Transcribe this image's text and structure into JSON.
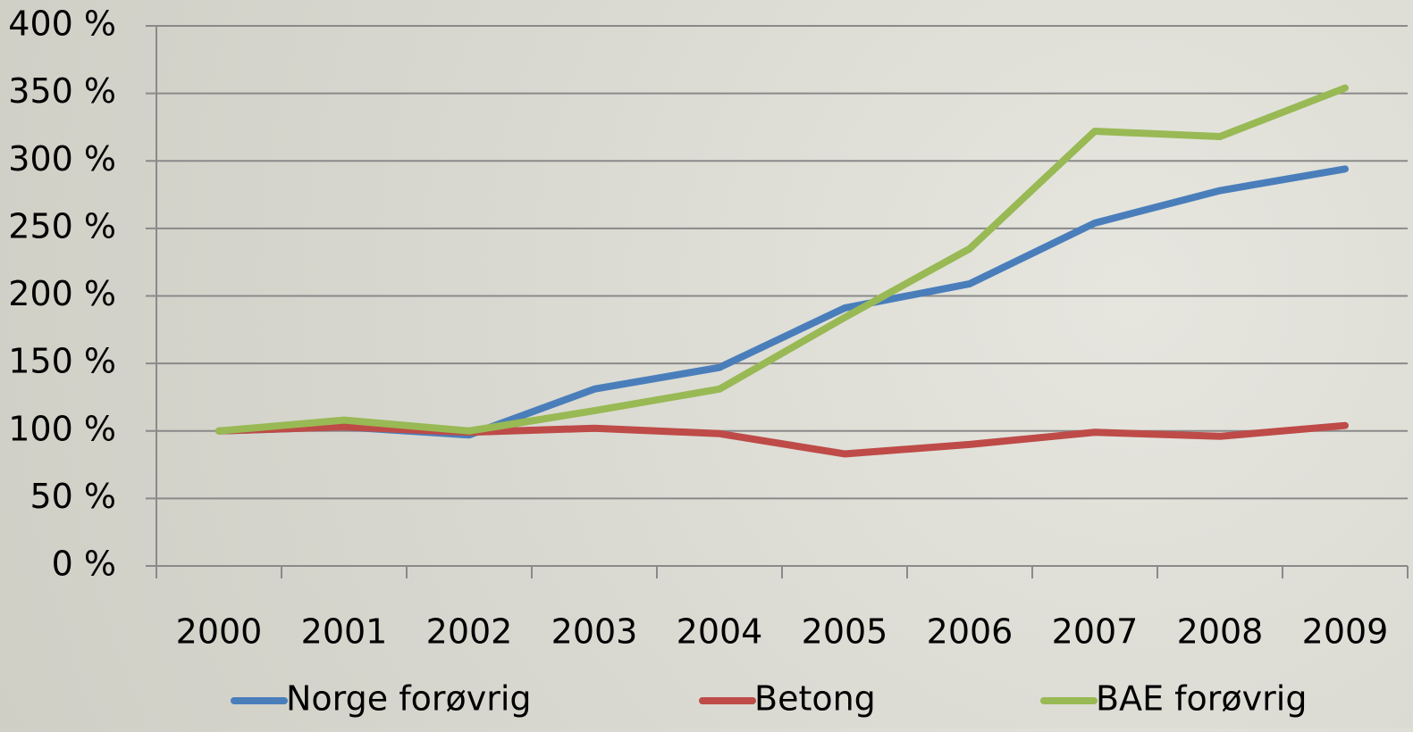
{
  "chart_data": {
    "type": "line",
    "categories": [
      "2000",
      "2001",
      "2002",
      "2003",
      "2004",
      "2005",
      "2006",
      "2007",
      "2008",
      "2009"
    ],
    "series": [
      {
        "name": "Norge forøvrig",
        "color": "#4a7ebb",
        "values": [
          100,
          103,
          97,
          131,
          147,
          191,
          209,
          254,
          278,
          294
        ]
      },
      {
        "name": "Betong",
        "color": "#be4b48",
        "values": [
          100,
          103,
          99,
          102,
          98,
          83,
          90,
          99,
          96,
          104
        ]
      },
      {
        "name": "BAE forøvrig",
        "color": "#98b954",
        "values": [
          100,
          108,
          100,
          115,
          131,
          184,
          235,
          322,
          318,
          354
        ]
      }
    ],
    "ylim": [
      0,
      400
    ],
    "yticks": [
      {
        "value": 0,
        "label": "0 %"
      },
      {
        "value": 50,
        "label": "50 %"
      },
      {
        "value": 100,
        "label": "100 %"
      },
      {
        "value": 150,
        "label": "150 %"
      },
      {
        "value": 200,
        "label": "200 %"
      },
      {
        "value": 250,
        "label": "250 %"
      },
      {
        "value": 300,
        "label": "300 %"
      },
      {
        "value": 350,
        "label": "350 %"
      },
      {
        "value": 400,
        "label": "400 %"
      }
    ],
    "grid": true,
    "legend": "bottom"
  }
}
